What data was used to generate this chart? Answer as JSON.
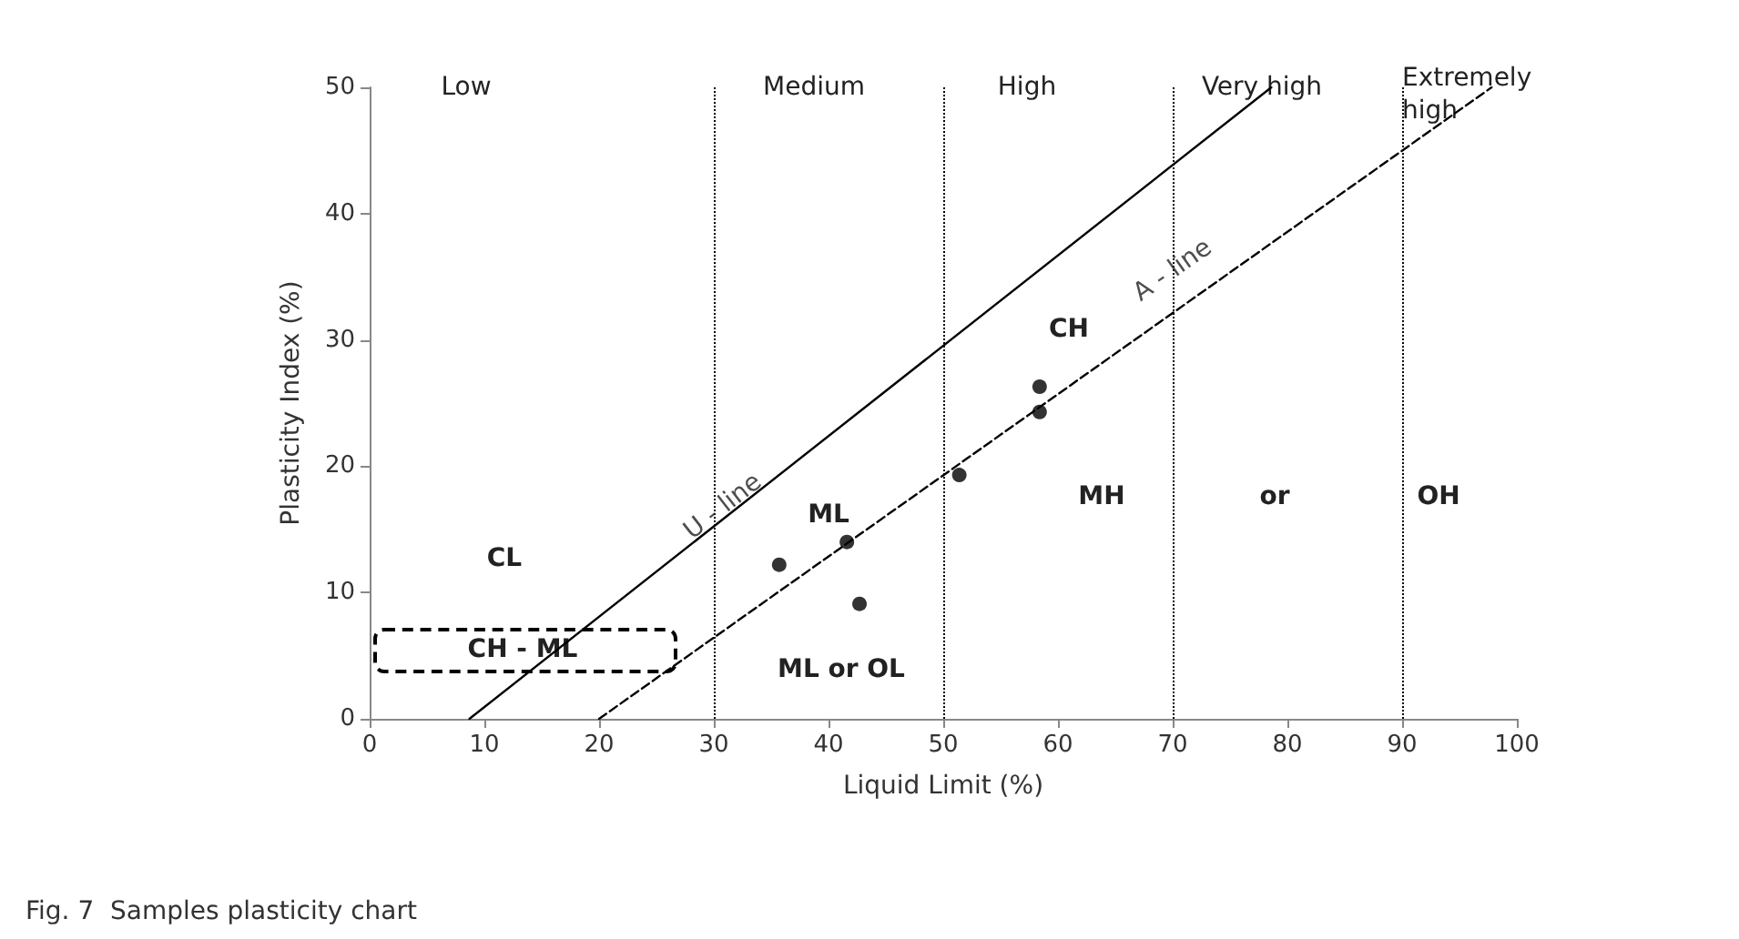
{
  "chart_data": {
    "type": "scatter",
    "xlabel": "Liquid Limit (%)",
    "ylabel": "Plasticity Index (%)",
    "xlim": [
      0,
      100
    ],
    "xticks": [
      0,
      10,
      20,
      30,
      40,
      50,
      60,
      70,
      80,
      90,
      100
    ],
    "ylim": [
      0,
      50
    ],
    "yticks": [
      0,
      10,
      20,
      30,
      40,
      50
    ],
    "grid": false,
    "series": [
      {
        "color": "#000000",
        "marker": "circle",
        "x": [
          35.7,
          41.6,
          42.7,
          51.4,
          58.4,
          58.4
        ],
        "values": [
          12.2,
          14.0,
          9.1,
          19.3,
          26.3,
          24.3
        ]
      },
      {
        "type": "line",
        "color": "#000000",
        "line_style": "solid",
        "marker": "none",
        "x": [
          8.7,
          78.6
        ],
        "values": [
          0,
          50
        ]
      },
      {
        "type": "line",
        "color": "#000000",
        "line_style": "dashed",
        "marker": "none",
        "x": [
          20,
          97.8
        ],
        "values": [
          0,
          50
        ]
      }
    ],
    "ref_lines": [
      {
        "axis": "x",
        "value": 30,
        "color": "#000000",
        "line_style": "dotted"
      },
      {
        "axis": "x",
        "value": 50,
        "color": "#000000",
        "line_style": "dotted"
      },
      {
        "axis": "x",
        "value": 70,
        "color": "#000000",
        "line_style": "dotted"
      },
      {
        "axis": "x",
        "value": 90,
        "color": "#000000",
        "line_style": "dotted"
      }
    ],
    "annotations": [
      "Low",
      "Medium",
      "High",
      "Very high",
      "Extremely\nhigh",
      "CL",
      "CH - ML",
      {
        "text": "U - line",
        "x": 30.8,
        "y": 16.8
      },
      "ML",
      "ML or OL",
      "CH",
      {
        "text": "A - line",
        "x": 70,
        "y": 35.5
      },
      "MH",
      "or",
      "OH",
      "Fig. 7  Samples plasticity chart"
    ]
  }
}
